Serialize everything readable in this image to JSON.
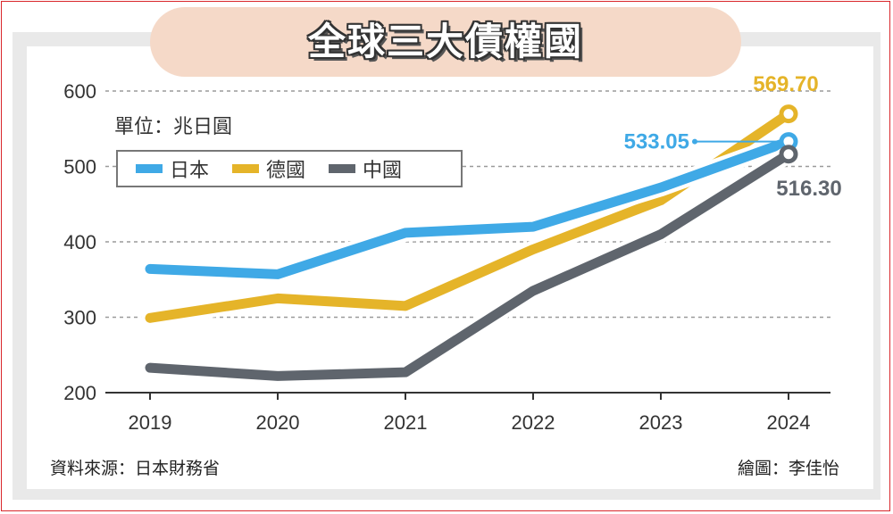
{
  "title": "全球三大債權國",
  "unit_label": "單位：兆日圓",
  "source": "資料來源：日本財務省",
  "credit": "繪圖：李佳怡",
  "colors": {
    "japan": "#3fa9e6",
    "germany": "#e5b429",
    "china": "#5f656d",
    "title_bg": "#f5d9c8"
  },
  "chart_data": {
    "type": "line",
    "title": "全球三大債權國",
    "xlabel": "",
    "ylabel": "單位：兆日圓",
    "x": [
      "2019",
      "2020",
      "2021",
      "2022",
      "2023",
      "2024"
    ],
    "ylim": [
      200,
      600
    ],
    "yticks": [
      "200",
      "300",
      "400",
      "500",
      "600"
    ],
    "grid": true,
    "legend_position": "top-left",
    "series": [
      {
        "key": "japan",
        "name": "日本",
        "color": "#3fa9e6",
        "values": [
          364,
          357,
          412,
          420,
          472,
          533.05
        ],
        "end_label": "533.05"
      },
      {
        "key": "germany",
        "name": "德國",
        "color": "#e5b429",
        "values": [
          299,
          325,
          315,
          390,
          455,
          569.7
        ],
        "end_label": "569.70"
      },
      {
        "key": "china",
        "name": "中國",
        "color": "#5f656d",
        "values": [
          233,
          222,
          227,
          335,
          410,
          516.3
        ],
        "end_label": "516.30"
      }
    ]
  }
}
